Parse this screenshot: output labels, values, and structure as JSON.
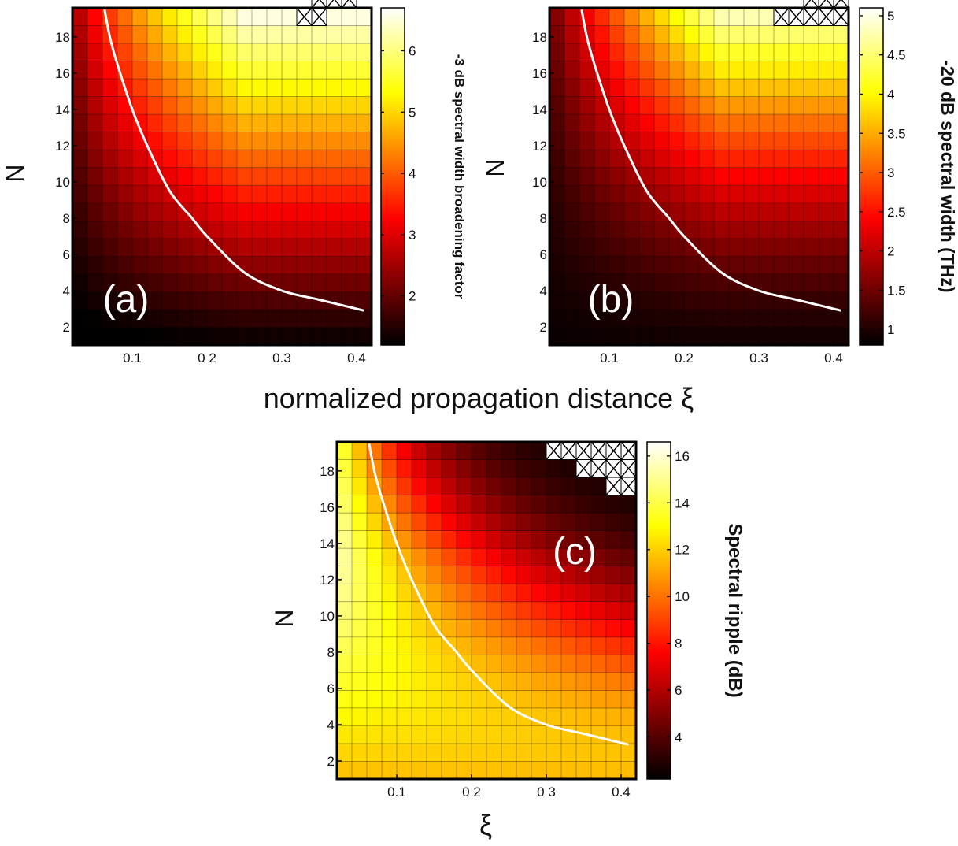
{
  "figure": {
    "shared_xlabel": "normalized propagation distance ξ"
  },
  "chart_data": [
    {
      "type": "heatmap",
      "panel_label": "(a)",
      "xlabel": "",
      "ylabel": "N",
      "colorbar_label": "-3 dB spectral width  broadening factor",
      "x_ticks": [
        0.1,
        0.2,
        0.3,
        0.4
      ],
      "x_tick_labels": [
        "0.1",
        "0 2",
        "0.3",
        "0.4"
      ],
      "y_ticks": [
        2,
        4,
        6,
        8,
        10,
        12,
        14,
        16,
        18
      ],
      "y_tick_labels": [
        "2",
        "4",
        "6",
        "8",
        "10",
        "12",
        "14",
        "16",
        "18"
      ],
      "xlim": [
        0.02,
        0.42
      ],
      "ylim": [
        1,
        19.6
      ],
      "grid": {
        "x": [
          0.02,
          0.42,
          20
        ],
        "y": [
          1,
          19.6,
          19
        ]
      },
      "value_model": {
        "base": 1.0,
        "gain": 5.8,
        "exponent": 0.55,
        "peak_x": 0.25
      },
      "colorbar": {
        "range": [
          1.2,
          6.7
        ],
        "ticks": [
          2,
          3,
          4,
          5,
          6
        ],
        "tick_labels": [
          "2",
          "3",
          "4",
          "5",
          "6"
        ]
      },
      "hatch_rows": [
        [
          16,
          17,
          19
        ],
        [
          17,
          18,
          20
        ],
        [
          18,
          19,
          20
        ]
      ],
      "curve": {
        "x": [
          0.063,
          0.07,
          0.08,
          0.1,
          0.12,
          0.15,
          0.18,
          0.2,
          0.25,
          0.3,
          0.35,
          0.41
        ],
        "y": [
          19.5,
          18,
          16.5,
          14,
          12,
          9.5,
          8,
          7,
          5,
          4,
          3.5,
          2.9
        ]
      }
    },
    {
      "type": "heatmap",
      "panel_label": "(b)",
      "xlabel": "",
      "ylabel": "N",
      "colorbar_label": "-20 dB spectral width  (THz)",
      "x_ticks": [
        0.1,
        0.2,
        0.3,
        0.4
      ],
      "x_tick_labels": [
        "0.1",
        "0.2",
        "0.3",
        "0.4"
      ],
      "y_ticks": [
        2,
        4,
        6,
        8,
        10,
        12,
        14,
        16,
        18
      ],
      "y_tick_labels": [
        "2",
        "4",
        "6",
        "8",
        "10",
        "12",
        "14",
        "16",
        "18"
      ],
      "xlim": [
        0.02,
        0.42
      ],
      "ylim": [
        1,
        19.6
      ],
      "grid": {
        "x": [
          0.02,
          0.42,
          20
        ],
        "y": [
          1,
          19.6,
          19
        ]
      },
      "value_model": {
        "base": 0.85,
        "gain": 4.2,
        "exponent": 0.75,
        "peak_x": 0.25
      },
      "colorbar": {
        "range": [
          0.8,
          5.1
        ],
        "ticks": [
          1,
          1.5,
          2,
          2.5,
          3,
          3.5,
          4,
          4.5,
          5
        ],
        "tick_labels": [
          "1",
          "1.5",
          "2",
          "2.5",
          "3",
          "3.5",
          "4",
          "4.5",
          "5"
        ]
      },
      "hatch_rows": [
        [
          16,
          20,
          19
        ],
        [
          18,
          19,
          20
        ],
        [
          19,
          20,
          20
        ]
      ],
      "curve": {
        "x": [
          0.063,
          0.07,
          0.08,
          0.1,
          0.12,
          0.15,
          0.18,
          0.2,
          0.25,
          0.3,
          0.35,
          0.41
        ],
        "y": [
          19.5,
          18,
          16.5,
          14,
          12,
          9.5,
          8,
          7,
          5,
          4,
          3.5,
          2.9
        ]
      }
    },
    {
      "type": "heatmap",
      "panel_label": "(c)",
      "xlabel": "ξ",
      "ylabel": "N",
      "colorbar_label": "Spectral  ripple  (dB)",
      "x_ticks": [
        0.1,
        0.2,
        0.3,
        0.4
      ],
      "x_tick_labels": [
        "0.1",
        "0 2",
        "0 3",
        "0.4"
      ],
      "y_ticks": [
        2,
        4,
        6,
        8,
        10,
        12,
        14,
        16,
        18
      ],
      "y_tick_labels": [
        "2",
        "4",
        "6",
        "8",
        "10",
        "12",
        "14",
        "16",
        "18"
      ],
      "xlim": [
        0.02,
        0.42
      ],
      "ylim": [
        1,
        19.6
      ],
      "grid": {
        "x": [
          0.02,
          0.42,
          20
        ],
        "y": [
          1,
          19.6,
          19
        ]
      },
      "value_model": {
        "kind": "ripple",
        "low": 2.2,
        "high": 16.6
      },
      "colorbar": {
        "range": [
          2.2,
          16.6
        ],
        "ticks": [
          4,
          6,
          8,
          10,
          12,
          14,
          16
        ],
        "tick_labels": [
          "4",
          "6",
          "8",
          "10",
          "12",
          "14",
          "16"
        ]
      },
      "hatch_rows": [
        [
          15,
          20,
          19
        ],
        [
          17,
          20,
          18
        ],
        [
          19,
          20,
          17
        ]
      ],
      "curve": {
        "x": [
          0.063,
          0.07,
          0.08,
          0.1,
          0.12,
          0.15,
          0.18,
          0.2,
          0.25,
          0.3,
          0.35,
          0.41
        ],
        "y": [
          19.5,
          18,
          16.5,
          14,
          12,
          9.5,
          8,
          7,
          5,
          4,
          3.5,
          2.9
        ]
      }
    }
  ]
}
